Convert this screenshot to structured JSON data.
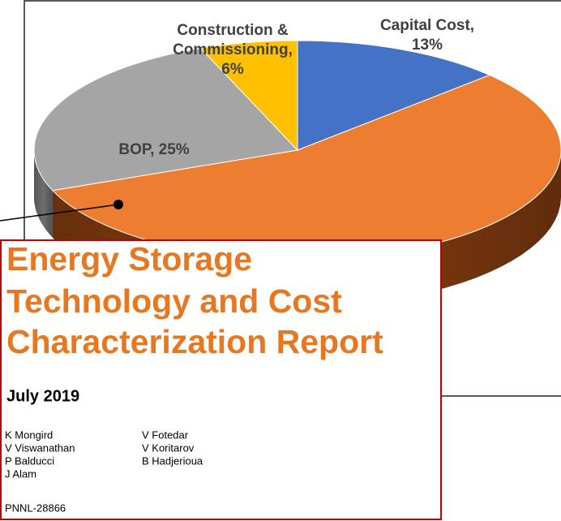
{
  "chart_data": {
    "type": "pie",
    "labels": [
      [
        "Capital Cost,",
        "13%"
      ],
      null,
      [
        "BOP, 25%"
      ],
      [
        "Construction &",
        "Commissioning,",
        "6%"
      ]
    ],
    "values": [
      13,
      56,
      25,
      6
    ],
    "colors": [
      "#4472c4",
      "#ed7d31",
      "#a5a5a5",
      "#ffc000"
    ],
    "side_colors": [
      "#2f528f",
      "#8a3f10",
      "#6f6f6f",
      "#b08400"
    ]
  },
  "document": {
    "title": [
      "Energy Storage",
      "Technology and Cost",
      "Characterization Report"
    ],
    "date": "July 2019",
    "authors": [
      [
        "K Mongird",
        "V Viswanathan",
        "P Balducci",
        "J Alam"
      ],
      [
        "V Fotedar",
        "V Koritarov",
        "B Hadjerioua"
      ]
    ],
    "report_number": "PNNL-28866"
  }
}
